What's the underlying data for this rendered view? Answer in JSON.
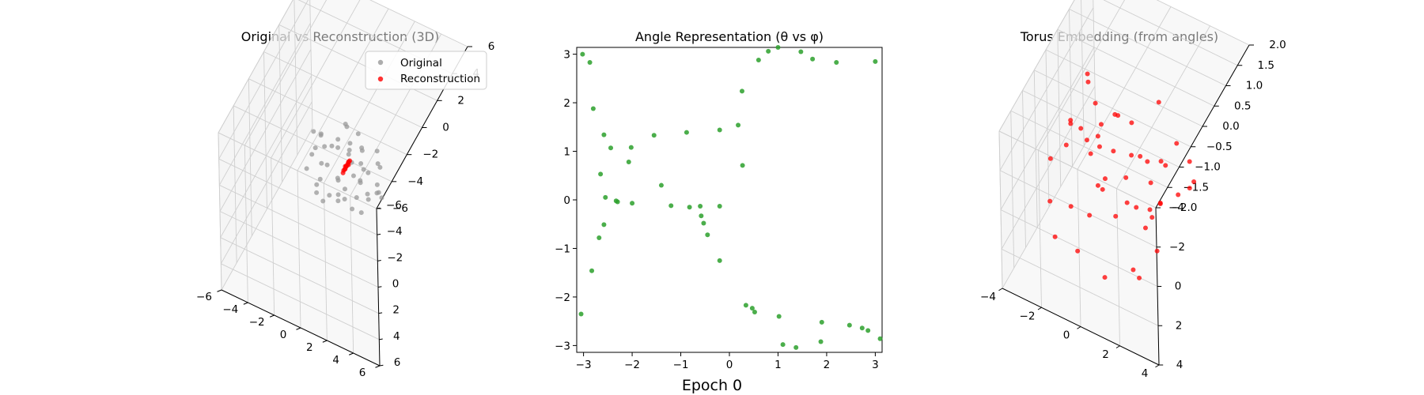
{
  "figure": {
    "suptitle": "Epoch 0"
  },
  "chart_data": [
    {
      "type": "scatter",
      "projection": "3d",
      "title": "Original vs Reconstruction (3D)",
      "xlim": [
        -6,
        6
      ],
      "ylim": [
        -6,
        6
      ],
      "zlim": [
        -6,
        6
      ],
      "x_ticks": [
        "−6",
        "−4",
        "−2",
        "0",
        "2",
        "4",
        "6"
      ],
      "y_ticks": [
        "−6",
        "−4",
        "−2",
        "0",
        "2",
        "4",
        "6"
      ],
      "z_ticks": [
        "−6",
        "−4",
        "−2",
        "0",
        "2",
        "4",
        "6"
      ],
      "grid": true,
      "legend": {
        "placement": "top-right",
        "entries": [
          "Original",
          "Reconstruction"
        ]
      },
      "series": [
        {
          "name": "Original",
          "color": "#999999",
          "points": [
            [
              2.2,
              -0.8,
              0.6
            ],
            [
              2.0,
              0.2,
              1.2
            ],
            [
              2.4,
              1.0,
              0.3
            ],
            [
              1.5,
              -1.5,
              -0.4
            ],
            [
              1.2,
              0.8,
              1.0
            ],
            [
              0.6,
              -0.3,
              1.3
            ],
            [
              0.2,
              1.3,
              0.8
            ],
            [
              -0.5,
              0.4,
              1.5
            ],
            [
              -1.0,
              -0.8,
              0.9
            ],
            [
              -1.6,
              0.2,
              1.1
            ],
            [
              -2.0,
              1.0,
              0.4
            ],
            [
              -2.2,
              -0.5,
              0.0
            ],
            [
              -1.8,
              1.5,
              -0.6
            ],
            [
              -1.2,
              -1.6,
              -0.5
            ],
            [
              -0.4,
              2.0,
              -0.2
            ],
            [
              0.4,
              -2.0,
              0.1
            ],
            [
              1.0,
              1.8,
              -0.8
            ],
            [
              1.8,
              -0.8,
              -1.0
            ],
            [
              2.2,
              0.6,
              -0.7
            ],
            [
              -2.3,
              0.1,
              -1.0
            ],
            [
              -1.4,
              1.2,
              -1.3
            ],
            [
              -0.6,
              -1.2,
              -1.2
            ],
            [
              0.3,
              0.9,
              -1.4
            ],
            [
              0.9,
              -0.4,
              -1.5
            ],
            [
              1.6,
              1.4,
              0.2
            ],
            [
              -0.9,
              1.8,
              0.6
            ],
            [
              -2.1,
              -1.0,
              0.6
            ],
            [
              0.1,
              -0.7,
              0.4
            ],
            [
              1.3,
              0.1,
              -0.2
            ],
            [
              -0.2,
              0.5,
              -0.5
            ],
            [
              2.6,
              -0.2,
              -0.2
            ],
            [
              -2.6,
              0.4,
              0.2
            ],
            [
              0.7,
              2.2,
              0.3
            ],
            [
              -0.3,
              -2.1,
              0.9
            ],
            [
              1.9,
              1.9,
              0.9
            ],
            [
              -1.7,
              -1.8,
              -0.1
            ],
            [
              1.1,
              -1.9,
              -0.9
            ],
            [
              -1.1,
              2.0,
              -1.0
            ],
            [
              0.0,
              0.0,
              -2.0
            ],
            [
              0.2,
              0.3,
              1.9
            ],
            [
              2.8,
              0.9,
              0.0
            ],
            [
              -2.5,
              -1.3,
              0.3
            ],
            [
              0.5,
              1.5,
              1.6
            ],
            [
              -0.7,
              -1.6,
              1.4
            ],
            [
              1.4,
              2.4,
              -0.3
            ],
            [
              -1.5,
              0.9,
              1.7
            ],
            [
              2.1,
              -1.6,
              0.7
            ],
            [
              -0.1,
              2.5,
              0.1
            ],
            [
              0.8,
              -2.5,
              0.5
            ],
            [
              -2.0,
              2.0,
              0.2
            ]
          ]
        },
        {
          "name": "Reconstruction",
          "color": "#ff0000",
          "points": [
            [
              0.05,
              0.02,
              0.6
            ],
            [
              0.03,
              0.0,
              0.45
            ],
            [
              0.06,
              -0.02,
              0.3
            ],
            [
              0.04,
              0.01,
              0.15
            ],
            [
              0.05,
              0.03,
              0.0
            ],
            [
              0.02,
              0.0,
              -0.15
            ],
            [
              0.06,
              0.02,
              -0.3
            ],
            [
              0.04,
              -0.01,
              0.5
            ],
            [
              0.03,
              0.02,
              0.2
            ],
            [
              0.05,
              0.0,
              -0.05
            ],
            [
              0.1,
              0.05,
              0.35
            ],
            [
              0.0,
              -0.05,
              0.1
            ]
          ]
        }
      ]
    },
    {
      "type": "scatter",
      "title": "Angle Representation (θ vs φ)",
      "xlim": [
        -3.14,
        3.14
      ],
      "ylim": [
        -3.14,
        3.14
      ],
      "x_ticks": [
        {
          "v": -3,
          "label": "−3"
        },
        {
          "v": -2,
          "label": "−2"
        },
        {
          "v": -1,
          "label": "−1"
        },
        {
          "v": 0,
          "label": "0"
        },
        {
          "v": 1,
          "label": "1"
        },
        {
          "v": 2,
          "label": "2"
        },
        {
          "v": 3,
          "label": "3"
        }
      ],
      "y_ticks": [
        {
          "v": -3,
          "label": "−3"
        },
        {
          "v": -2,
          "label": "−2"
        },
        {
          "v": -1,
          "label": "−1"
        },
        {
          "v": 0,
          "label": "0"
        },
        {
          "v": 1,
          "label": "1"
        },
        {
          "v": 2,
          "label": "2"
        },
        {
          "v": 3,
          "label": "3"
        }
      ],
      "grid": false,
      "series": [
        {
          "color": "#2ca02c",
          "points": [
            [
              -3.02,
              3.0
            ],
            [
              -2.87,
              2.83
            ],
            [
              -2.8,
              1.88
            ],
            [
              -2.58,
              1.34
            ],
            [
              -2.44,
              1.07
            ],
            [
              -2.02,
              1.08
            ],
            [
              -2.07,
              0.78
            ],
            [
              -2.65,
              0.53
            ],
            [
              -2.55,
              0.05
            ],
            [
              -2.33,
              -0.02
            ],
            [
              -2.3,
              -0.04
            ],
            [
              -2.0,
              -0.07
            ],
            [
              -2.58,
              -0.51
            ],
            [
              -2.68,
              -0.78
            ],
            [
              -2.83,
              -1.46
            ],
            [
              -3.05,
              -2.35
            ],
            [
              -1.55,
              1.33
            ],
            [
              -1.4,
              0.3
            ],
            [
              -1.2,
              -0.12
            ],
            [
              -0.88,
              1.39
            ],
            [
              -0.82,
              -0.15
            ],
            [
              -0.6,
              -0.13
            ],
            [
              -0.58,
              -0.33
            ],
            [
              -0.53,
              -0.48
            ],
            [
              -0.45,
              -0.72
            ],
            [
              -0.2,
              1.44
            ],
            [
              -0.2,
              -0.13
            ],
            [
              -0.2,
              -1.25
            ],
            [
              0.18,
              1.54
            ],
            [
              0.26,
              2.24
            ],
            [
              0.27,
              0.71
            ],
            [
              0.34,
              -2.17
            ],
            [
              0.47,
              -2.23
            ],
            [
              0.52,
              -2.31
            ],
            [
              0.6,
              2.88
            ],
            [
              0.8,
              3.06
            ],
            [
              1.0,
              3.14
            ],
            [
              1.47,
              3.05
            ],
            [
              1.71,
              2.9
            ],
            [
              2.2,
              2.83
            ],
            [
              3.0,
              2.85
            ],
            [
              1.02,
              -2.4
            ],
            [
              1.1,
              -2.98
            ],
            [
              1.37,
              -3.04
            ],
            [
              1.9,
              -2.52
            ],
            [
              1.88,
              -2.92
            ],
            [
              2.47,
              -2.58
            ],
            [
              2.73,
              -2.64
            ],
            [
              2.85,
              -2.69
            ],
            [
              3.1,
              -2.86
            ]
          ]
        }
      ]
    },
    {
      "type": "scatter",
      "projection": "3d",
      "title": "Torus Embedding (from angles)",
      "xlim": [
        -4,
        4
      ],
      "ylim": [
        -4,
        4
      ],
      "zlim": [
        -2,
        2
      ],
      "x_ticks": [
        "−4",
        "−2",
        "0",
        "2",
        "4"
      ],
      "y_ticks": [
        "−4",
        "−2",
        "0",
        "2",
        "4"
      ],
      "z_ticks": [
        "−2.0",
        "−1.5",
        "−1.0",
        "−0.5",
        "0.0",
        "0.5",
        "1.0",
        "1.5",
        "2.0"
      ],
      "grid": true,
      "series": [
        {
          "color": "#ff0000",
          "points": [
            [
              -3.0,
              -1.4,
              0.9
            ],
            [
              -2.6,
              -1.8,
              0.6
            ],
            [
              -2.9,
              0.5,
              0.5
            ],
            [
              -2.2,
              1.5,
              0.7
            ],
            [
              -1.7,
              2.2,
              0.2
            ],
            [
              -1.0,
              2.7,
              0.8
            ],
            [
              0.0,
              2.9,
              0.4
            ],
            [
              1.0,
              2.6,
              0.6
            ],
            [
              1.8,
              2.0,
              0.7
            ],
            [
              2.5,
              1.2,
              0.8
            ],
            [
              2.9,
              0.3,
              0.3
            ],
            [
              2.8,
              -0.8,
              0.4
            ],
            [
              2.3,
              -1.6,
              -0.2
            ],
            [
              1.5,
              -2.5,
              -0.6
            ],
            [
              0.5,
              -2.9,
              -0.9
            ],
            [
              -0.6,
              -2.9,
              -0.5
            ],
            [
              -1.5,
              -2.5,
              0.0
            ],
            [
              -2.3,
              -1.9,
              -0.4
            ],
            [
              -3.0,
              -0.4,
              -0.7
            ],
            [
              -2.7,
              1.0,
              -1.0
            ],
            [
              -2.1,
              1.9,
              -1.3
            ],
            [
              -1.2,
              2.6,
              -1.1
            ],
            [
              0.3,
              3.0,
              -1.2
            ],
            [
              1.4,
              2.7,
              -0.9
            ],
            [
              2.2,
              1.9,
              -1.3
            ],
            [
              2.9,
              0.6,
              -1.1
            ],
            [
              2.7,
              -1.1,
              -1.4
            ],
            [
              1.9,
              -2.2,
              -1.5
            ],
            [
              0.9,
              -2.8,
              -1.7
            ],
            [
              -0.3,
              -3.0,
              -1.2
            ],
            [
              -1.8,
              -2.3,
              -1.0
            ],
            [
              -2.8,
              -1.0,
              0.0
            ],
            [
              -1.9,
              0.2,
              0.4
            ],
            [
              -1.2,
              1.4,
              0.1
            ],
            [
              -0.2,
              2.0,
              -0.3
            ],
            [
              1.2,
              1.6,
              0.0
            ],
            [
              2.0,
              0.5,
              -0.2
            ],
            [
              1.7,
              -0.9,
              0.1
            ],
            [
              0.8,
              -1.8,
              -0.4
            ],
            [
              -0.6,
              -1.9,
              0.2
            ],
            [
              -1.6,
              -1.2,
              -0.3
            ],
            [
              0.0,
              1.6,
              0.9
            ],
            [
              1.4,
              0.2,
              1.0
            ],
            [
              -1.0,
              -0.6,
              -1.5
            ],
            [
              0.4,
              -1.2,
              1.1
            ],
            [
              -2.0,
              0.8,
              1.2
            ],
            [
              2.3,
              -0.2,
              -0.8
            ],
            [
              -0.8,
              1.0,
              -0.9
            ],
            [
              0.9,
              1.0,
              0.3
            ],
            [
              -0.4,
              -0.8,
              0.6
            ]
          ]
        }
      ]
    }
  ]
}
